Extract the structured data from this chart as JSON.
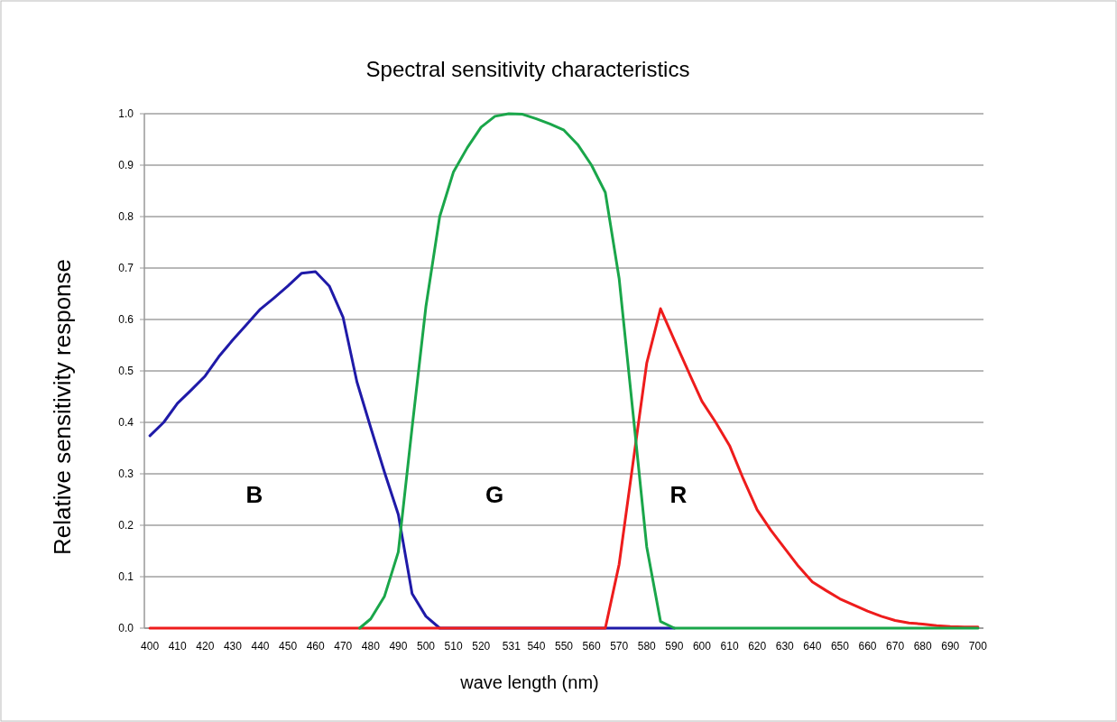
{
  "chart_data": {
    "type": "line",
    "title": "Spectral sensitivity characteristics",
    "xlabel": "wave length (nm)",
    "ylabel": "Relative sensitivity response",
    "xlim": [
      398,
      702
    ],
    "xticks": [
      400,
      410,
      420,
      430,
      440,
      450,
      460,
      470,
      480,
      490,
      500,
      510,
      520,
      531,
      540,
      550,
      560,
      570,
      580,
      590,
      600,
      610,
      620,
      630,
      640,
      650,
      660,
      670,
      680,
      690,
      700
    ],
    "ylim": [
      0,
      1
    ],
    "yticks": [
      {
        "value": 0,
        "label": "0.0"
      },
      0.1,
      0.2,
      0.3,
      0.4,
      0.5,
      0.6,
      0.7,
      0.8,
      0.9,
      {
        "value": 1,
        "label": "1.0"
      }
    ],
    "grid": "y",
    "marker": "none",
    "line_style": "solid",
    "series": [
      {
        "color": "#1f1aa8",
        "x": [
          400,
          405,
          410,
          415,
          420,
          425,
          430,
          435,
          440,
          445,
          450,
          455,
          460,
          465,
          470,
          475,
          480,
          485,
          490,
          495,
          500,
          505,
          510,
          520,
          530,
          540,
          550,
          560,
          570,
          580,
          590
        ],
        "values": [
          0.374,
          0.4,
          0.437,
          0.463,
          0.49,
          0.528,
          0.56,
          0.59,
          0.62,
          0.642,
          0.665,
          0.69,
          0.693,
          0.665,
          0.604,
          0.479,
          0.39,
          0.303,
          0.221,
          0.067,
          0.023,
          0,
          0,
          0,
          0,
          0,
          0,
          0,
          0,
          0,
          0
        ]
      },
      {
        "color": "#ee1c1c",
        "x": [
          400,
          420,
          440,
          460,
          480,
          500,
          520,
          540,
          560,
          565,
          570,
          575,
          580,
          585,
          590,
          595,
          600,
          605,
          610,
          615,
          620,
          625,
          630,
          635,
          640,
          645,
          650,
          655,
          660,
          665,
          670,
          675,
          680,
          685,
          690,
          695,
          700
        ],
        "values": [
          0,
          0,
          0,
          0,
          0,
          0,
          0,
          0,
          0,
          0,
          0.124,
          0.32,
          0.515,
          0.621,
          0.56,
          0.5,
          0.441,
          0.4,
          0.355,
          0.29,
          0.23,
          0.19,
          0.155,
          0.12,
          0.09,
          0.073,
          0.057,
          0.045,
          0.033,
          0.023,
          0.015,
          0.01,
          0.008,
          0.005,
          0.003,
          0.002,
          0.002
        ]
      },
      {
        "color": "#1aa64a",
        "x": [
          476,
          480,
          485,
          490,
          495,
          500,
          505,
          510,
          515,
          520,
          525,
          530,
          535,
          540,
          545,
          550,
          555,
          560,
          565,
          570,
          575,
          580,
          585,
          590,
          600,
          620,
          640,
          660,
          680,
          700
        ],
        "values": [
          0,
          0.018,
          0.062,
          0.148,
          0.39,
          0.625,
          0.8,
          0.887,
          0.934,
          0.974,
          0.995,
          1,
          0.999,
          0.99,
          0.98,
          0.968,
          0.94,
          0.9,
          0.847,
          0.68,
          0.42,
          0.158,
          0.013,
          0,
          0,
          0,
          0,
          0,
          0,
          0
        ]
      }
    ],
    "annotations": [
      "B",
      "G",
      "R"
    ]
  }
}
